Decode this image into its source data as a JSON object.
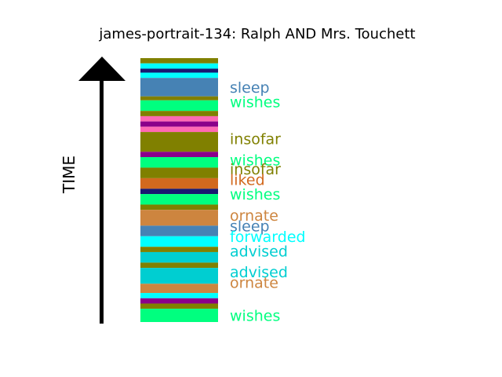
{
  "chart_data": {
    "type": "timeline-stack",
    "title": "james-portrait-134: Ralph AND Mrs. Touchett",
    "ylabel": "TIME",
    "colors": {
      "olive": "#808000",
      "cyan": "#00ffff",
      "navy": "#191970",
      "steelblue": "#4682b4",
      "springgreen": "#00ff7f",
      "hotpink": "#ff69b4",
      "purple": "#8b008b",
      "chocolate": "#d2691e",
      "peru": "#cd853f",
      "darkturquoise": "#00ced1",
      "arrow": "#000000"
    },
    "stripes": [
      {
        "color": "olive",
        "start": 0.0,
        "end": 2.0
      },
      {
        "color": "cyan",
        "start": 2.0,
        "end": 4.0
      },
      {
        "color": "navy",
        "start": 4.0,
        "end": 5.5
      },
      {
        "color": "cyan",
        "start": 5.5,
        "end": 7.5
      },
      {
        "color": "steelblue",
        "start": 7.5,
        "end": 14.5
      },
      {
        "color": "olive",
        "start": 14.5,
        "end": 16.0
      },
      {
        "color": "springgreen",
        "start": 16.0,
        "end": 20.0
      },
      {
        "color": "olive",
        "start": 20.0,
        "end": 22.0
      },
      {
        "color": "hotpink",
        "start": 22.0,
        "end": 24.0
      },
      {
        "color": "purple",
        "start": 24.0,
        "end": 26.0
      },
      {
        "color": "hotpink",
        "start": 26.0,
        "end": 28.0
      },
      {
        "color": "olive",
        "start": 28.0,
        "end": 35.5
      },
      {
        "color": "purple",
        "start": 35.5,
        "end": 37.5
      },
      {
        "color": "springgreen",
        "start": 37.5,
        "end": 41.5
      },
      {
        "color": "olive",
        "start": 41.5,
        "end": 45.5
      },
      {
        "color": "chocolate",
        "start": 45.5,
        "end": 49.5
      },
      {
        "color": "navy",
        "start": 49.5,
        "end": 51.5
      },
      {
        "color": "springgreen",
        "start": 51.5,
        "end": 55.5
      },
      {
        "color": "olive",
        "start": 55.5,
        "end": 57.5
      },
      {
        "color": "peru",
        "start": 57.5,
        "end": 63.5
      },
      {
        "color": "steelblue",
        "start": 63.5,
        "end": 67.5
      },
      {
        "color": "cyan",
        "start": 67.5,
        "end": 71.5
      },
      {
        "color": "olive",
        "start": 71.5,
        "end": 73.5
      },
      {
        "color": "darkturquoise",
        "start": 73.5,
        "end": 77.5
      },
      {
        "color": "olive",
        "start": 77.5,
        "end": 79.5
      },
      {
        "color": "darkturquoise",
        "start": 79.5,
        "end": 85.5
      },
      {
        "color": "peru",
        "start": 85.5,
        "end": 89.0
      },
      {
        "color": "cyan",
        "start": 89.0,
        "end": 91.0
      },
      {
        "color": "purple",
        "start": 91.0,
        "end": 93.0
      },
      {
        "color": "olive",
        "start": 93.0,
        "end": 95.0
      },
      {
        "color": "springgreen",
        "start": 95.0,
        "end": 100.0
      }
    ],
    "labels": [
      {
        "text": "sleep",
        "color": "steelblue",
        "at": 11.0
      },
      {
        "text": "wishes",
        "color": "springgreen",
        "at": 16.5
      },
      {
        "text": "insofar",
        "color": "olive",
        "at": 30.5
      },
      {
        "text": "wishes",
        "color": "springgreen",
        "at": 38.5
      },
      {
        "text": "insofar",
        "color": "olive",
        "at": 42.0
      },
      {
        "text": "liked",
        "color": "chocolate",
        "at": 46.0
      },
      {
        "text": "wishes",
        "color": "springgreen",
        "at": 51.5
      },
      {
        "text": "ornate",
        "color": "peru",
        "at": 59.5
      },
      {
        "text": "sleep",
        "color": "steelblue",
        "at": 63.5
      },
      {
        "text": "forwarded",
        "color": "cyan",
        "at": 67.5
      },
      {
        "text": "advised",
        "color": "darkturquoise",
        "at": 73.0
      },
      {
        "text": "advised",
        "color": "darkturquoise",
        "at": 81.0
      },
      {
        "text": "ornate",
        "color": "peru",
        "at": 85.0
      },
      {
        "text": "wishes",
        "color": "springgreen",
        "at": 97.5
      }
    ]
  }
}
